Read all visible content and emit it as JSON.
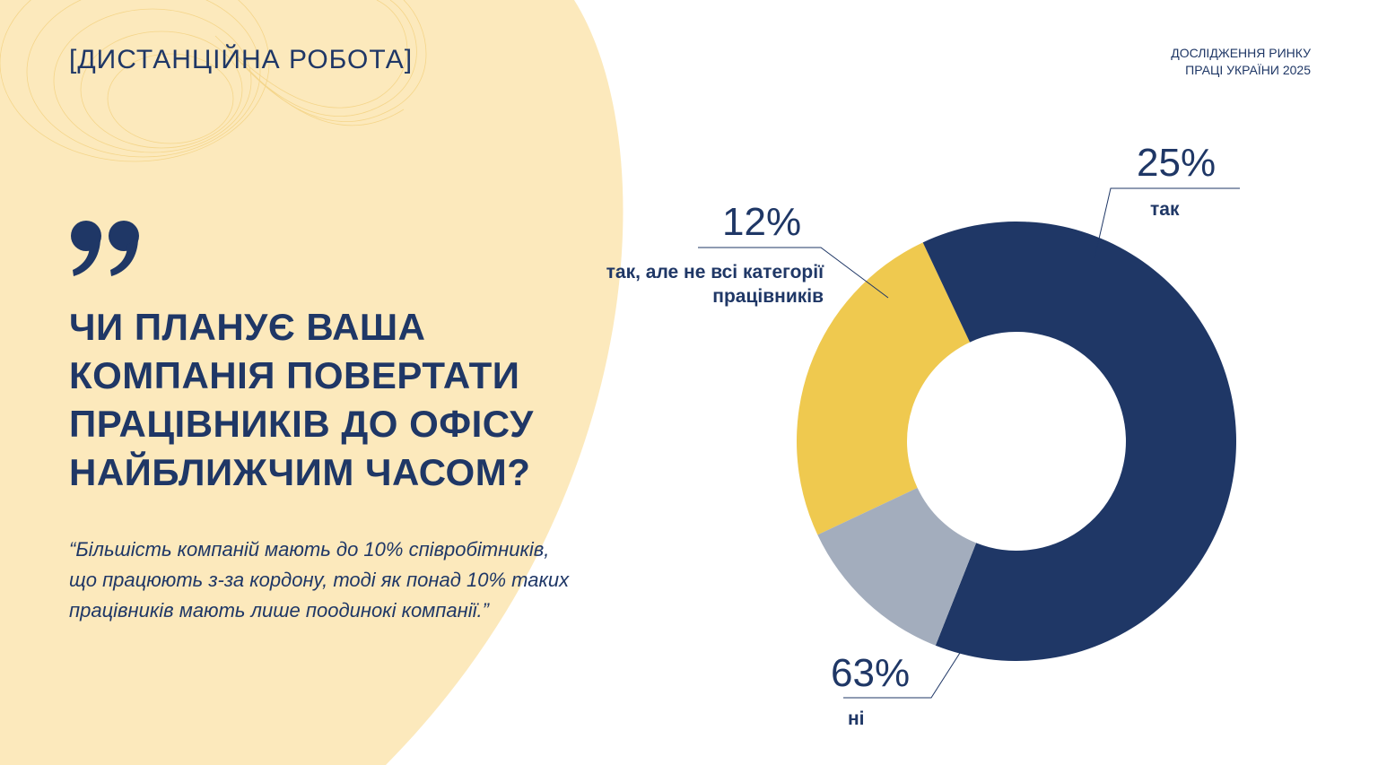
{
  "header": {
    "section_tag": "[ДИСТАНЦІЙНА РОБОТА]",
    "report_line1": "ДОСЛІДЖЕННЯ РИНКУ",
    "report_line2": "ПРАЦІ УКРАЇНИ 2025"
  },
  "question": {
    "lines": [
      "ЧИ ПЛАНУЄ ВАША",
      "КОМПАНІЯ ПОВЕРТАТИ",
      "ПРАЦІВНИКІВ ДО ОФІСУ",
      "НАЙБЛИЖЧИМ ЧАСОМ?"
    ]
  },
  "quote": {
    "lines": [
      "“Більшість компаній мають до 10% співробітників,",
      "що працюють з-за кордону, тоді як понад 10% таких",
      "працівників мають лише поодинокі компанії.”"
    ]
  },
  "colors": {
    "navy": "#1f3766",
    "gold": "#efc94f",
    "gray": "#a3adbd",
    "bg_shape": "#fce9bc"
  },
  "chart_data": {
    "type": "pie",
    "style": "donut",
    "slices": [
      {
        "label": "так",
        "value": 25,
        "display": "25%",
        "color": "#efc94f"
      },
      {
        "label": "ні",
        "value": 63,
        "display": "63%",
        "color": "#1f3766"
      },
      {
        "label_lines": [
          "так, але не всі категорії",
          "працівників"
        ],
        "value": 12,
        "display": "12%",
        "color": "#a3adbd"
      }
    ]
  }
}
